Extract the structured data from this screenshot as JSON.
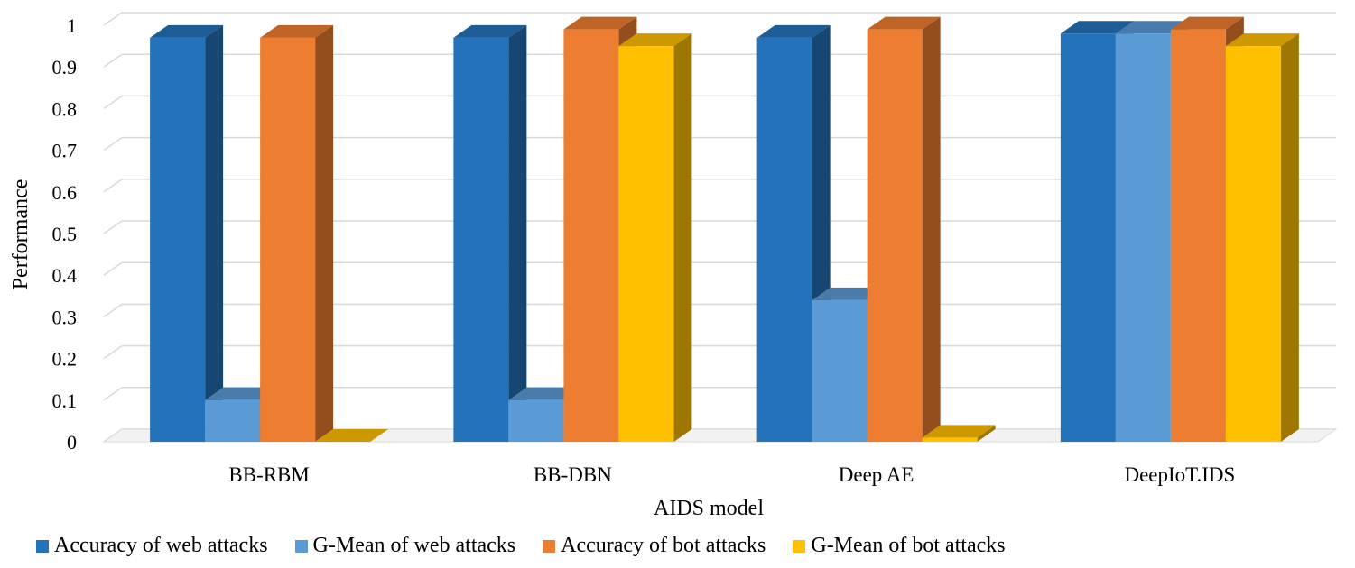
{
  "chart_data": {
    "type": "bar",
    "xlabel": "AIDS model",
    "ylabel": "Performance",
    "ylim": [
      0,
      1
    ],
    "yticks": [
      "0",
      "0.1",
      "0.2",
      "0.3",
      "0.4",
      "0.5",
      "0.6",
      "0.7",
      "0.8",
      "0.9",
      "1"
    ],
    "categories": [
      "BB-RBM",
      "BB-DBN",
      "Deep AE",
      "DeepIoT.IDS"
    ],
    "grid": true,
    "legend_position": "bottom",
    "series": [
      {
        "name": "Accuracy of web attacks",
        "color": "#2473BA",
        "values": [
          0.97,
          0.97,
          0.97,
          0.98
        ]
      },
      {
        "name": "G-Mean of web attacks",
        "color": "#5B9BD5",
        "values": [
          0.1,
          0.1,
          0.34,
          0.98
        ]
      },
      {
        "name": "Accuracy of bot attacks",
        "color": "#ED7D31",
        "values": [
          0.97,
          0.99,
          0.99,
          0.99
        ]
      },
      {
        "name": "G-Mean of bot attacks",
        "color": "#FFC000",
        "values": [
          0.0,
          0.95,
          0.01,
          0.95
        ]
      }
    ]
  }
}
